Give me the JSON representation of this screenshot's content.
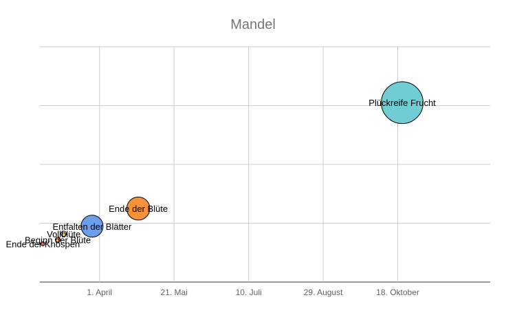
{
  "chart_data": {
    "type": "scatter",
    "title": "Mandel",
    "xlabel": "",
    "ylabel": "",
    "x_ticks": [
      "1. April",
      "21. Mai",
      "10. Juli",
      "29. August",
      "18. Oktober"
    ],
    "x_tick_dates": [
      "04-01",
      "05-21",
      "07-10",
      "08-29",
      "10-18"
    ],
    "xlim": [
      "02-20",
      "12-19"
    ],
    "ylim": [
      0,
      4
    ],
    "grid": true,
    "legend": "none",
    "points": [
      {
        "label": "Ende der Knospen",
        "date": "02-22",
        "y": 0.65,
        "size": 0.18,
        "color": "#e06666"
      },
      {
        "label": "Beginn der Blüte",
        "date": "03-04",
        "y": 0.72,
        "size": 0.22,
        "color": "#f6b26b"
      },
      {
        "label": "Vollblüte",
        "date": "03-08",
        "y": 0.82,
        "size": 0.25,
        "color": "#ffd966"
      },
      {
        "label": "Entfalten der Blätter",
        "date": "03-27",
        "y": 0.95,
        "size": 1.0,
        "color": "#6d9eeb"
      },
      {
        "label": "Ende der Blüte",
        "date": "04-27",
        "y": 1.25,
        "size": 1.05,
        "color": "#f6923a"
      },
      {
        "label": "Plückreife Frucht",
        "date": "10-21",
        "y": 3.05,
        "size": 1.9,
        "color": "#6fcdd3"
      }
    ]
  }
}
